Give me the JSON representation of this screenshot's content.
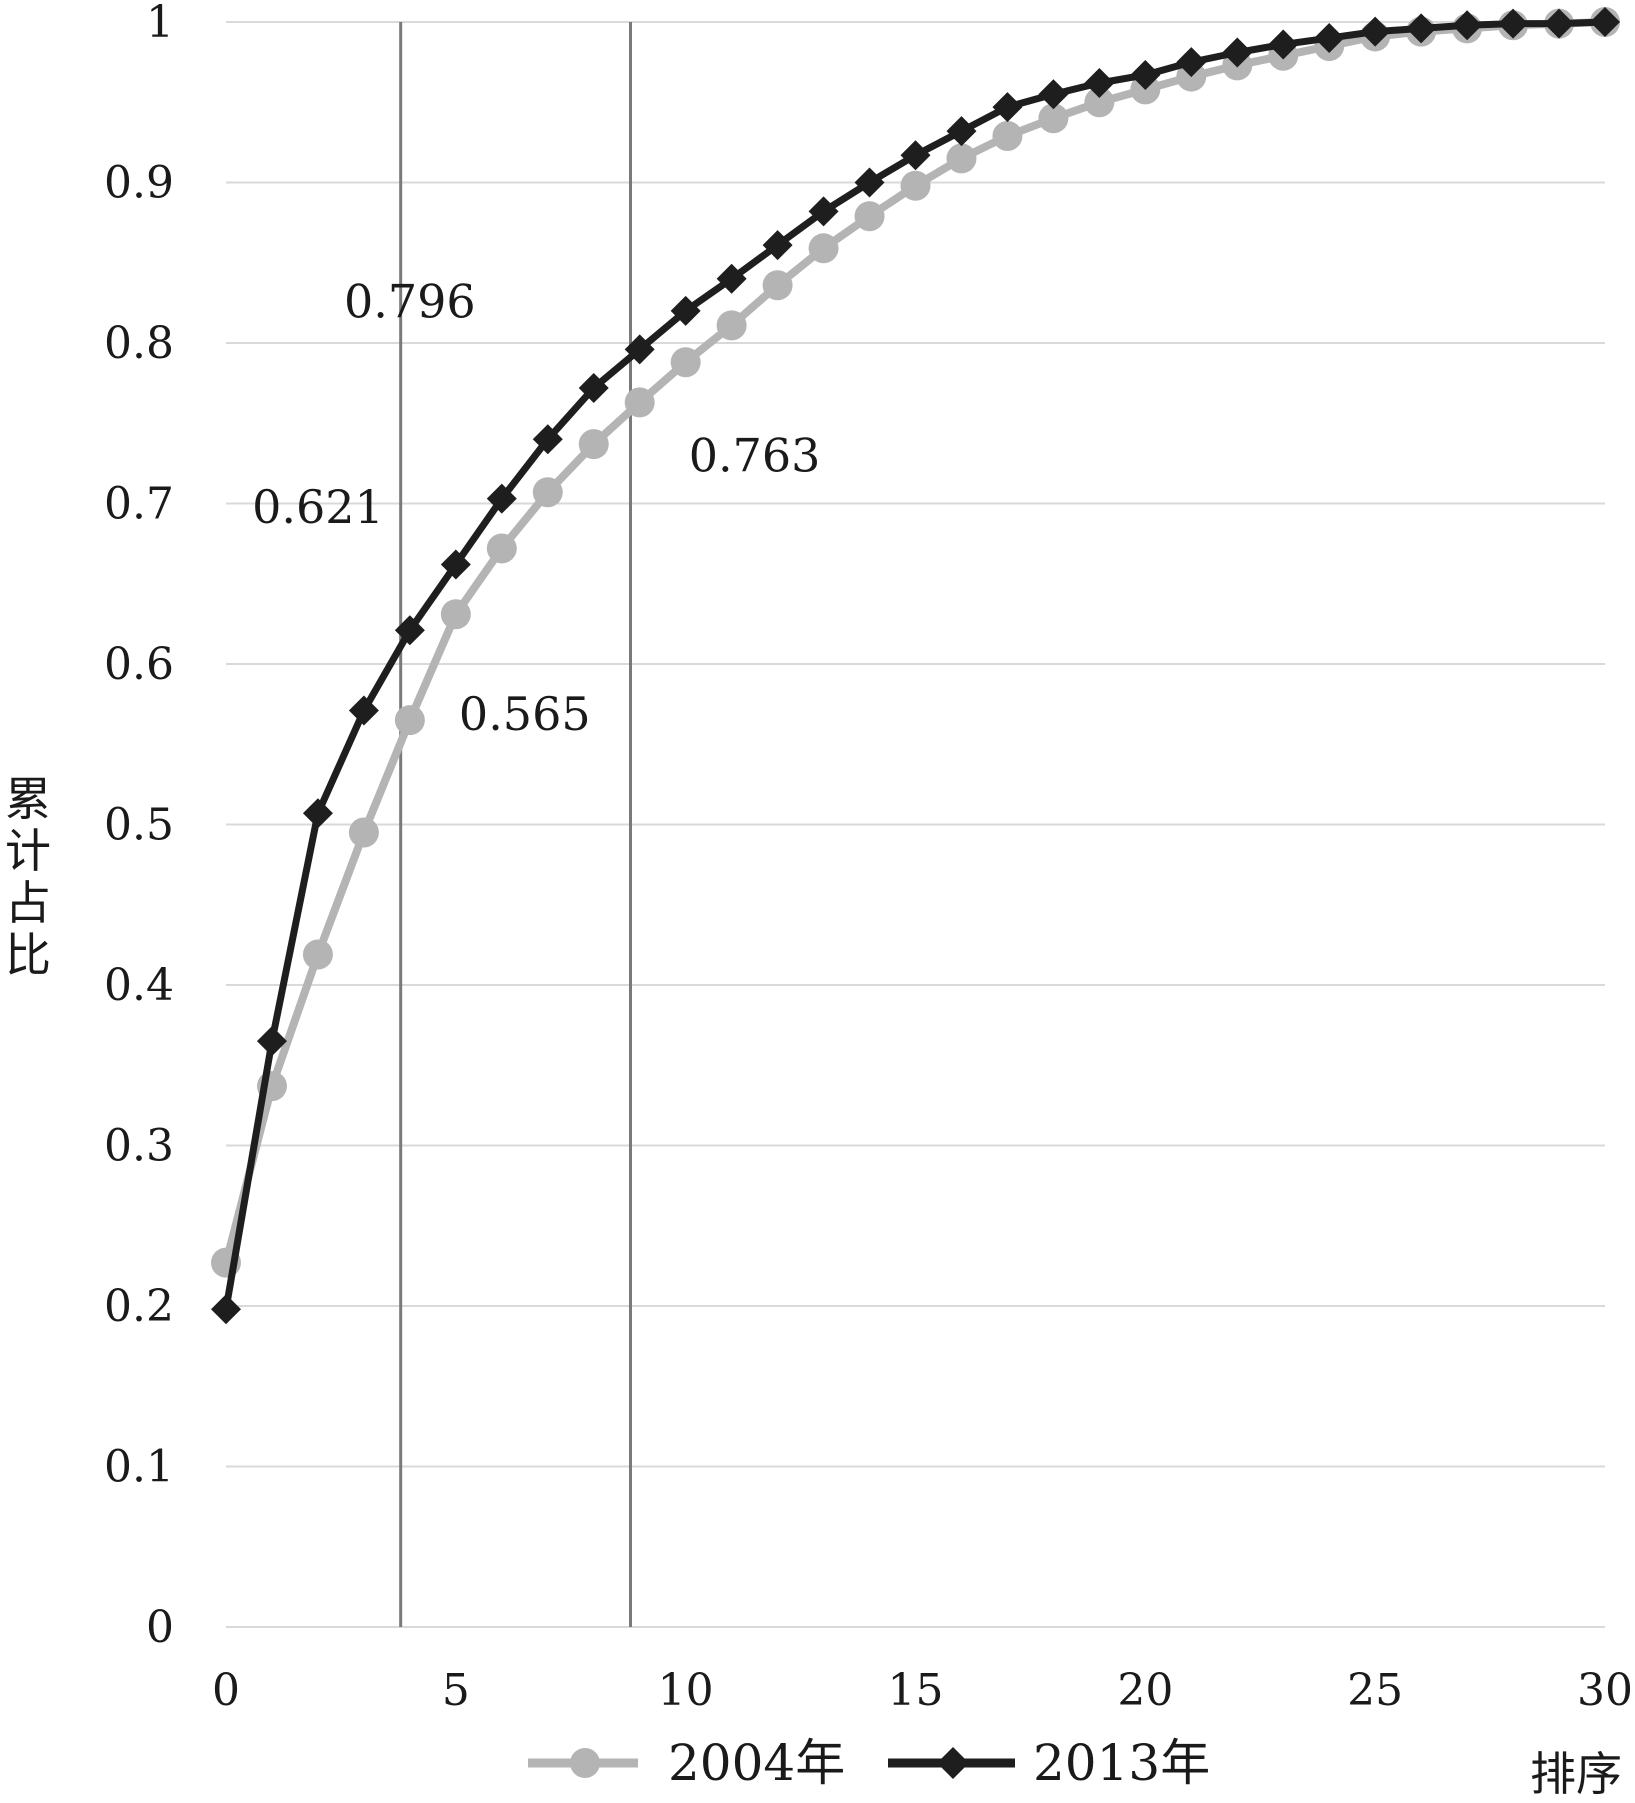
{
  "chart_data": {
    "type": "line",
    "xlabel": "排序",
    "ylabel": "累计占比",
    "xlim": [
      0,
      30
    ],
    "ylim": [
      0,
      1
    ],
    "x_ticks": [
      "0",
      "5",
      "10",
      "15",
      "20",
      "25",
      "30"
    ],
    "y_ticks": [
      "0",
      "0.1",
      "0.2",
      "0.3",
      "0.4",
      "0.5",
      "0.6",
      "0.7",
      "0.8",
      "0.9",
      "1"
    ],
    "grid": "horizontal",
    "legend_position": "bottom",
    "x": [
      0,
      1,
      2,
      3,
      4,
      5,
      6,
      7,
      8,
      9,
      10,
      11,
      12,
      13,
      14,
      15,
      16,
      17,
      18,
      19,
      20,
      21,
      22,
      23,
      24,
      25,
      26,
      27,
      28,
      29,
      30
    ],
    "series": [
      {
        "name": "2004年",
        "color": "#b4b4b4",
        "marker": "circle",
        "values": [
          0.227,
          0.337,
          0.419,
          0.495,
          0.565,
          0.631,
          0.672,
          0.707,
          0.737,
          0.763,
          0.788,
          0.811,
          0.836,
          0.859,
          0.879,
          0.898,
          0.915,
          0.929,
          0.94,
          0.95,
          0.958,
          0.966,
          0.973,
          0.979,
          0.985,
          0.991,
          0.994,
          0.996,
          0.998,
          0.999,
          1.0
        ]
      },
      {
        "name": "2013年",
        "color": "#1e1e1e",
        "marker": "diamond",
        "values": [
          0.198,
          0.365,
          0.507,
          0.571,
          0.621,
          0.662,
          0.703,
          0.74,
          0.772,
          0.796,
          0.82,
          0.84,
          0.861,
          0.882,
          0.9,
          0.917,
          0.932,
          0.947,
          0.955,
          0.962,
          0.967,
          0.975,
          0.981,
          0.986,
          0.99,
          0.994,
          0.996,
          0.998,
          0.999,
          0.999,
          1.0
        ]
      }
    ],
    "reference_lines_x": [
      3.8,
      8.8
    ],
    "annotations": [
      {
        "text": "0.796",
        "x": 4.0,
        "y": 0.816
      },
      {
        "text": "0.621",
        "x": 2.0,
        "y": 0.688
      },
      {
        "text": "0.565",
        "x": 6.5,
        "y": 0.559
      },
      {
        "text": "0.763",
        "x": 11.5,
        "y": 0.72
      }
    ]
  }
}
